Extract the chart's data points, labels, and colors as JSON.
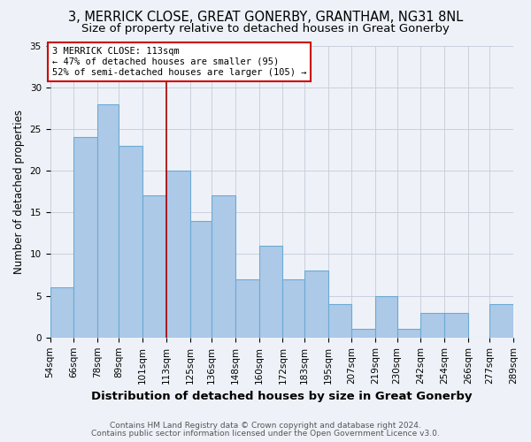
{
  "title": "3, MERRICK CLOSE, GREAT GONERBY, GRANTHAM, NG31 8NL",
  "subtitle": "Size of property relative to detached houses in Great Gonerby",
  "xlabel": "Distribution of detached houses by size in Great Gonerby",
  "ylabel": "Number of detached properties",
  "bins": [
    54,
    66,
    78,
    89,
    101,
    113,
    125,
    136,
    148,
    160,
    172,
    183,
    195,
    207,
    219,
    230,
    242,
    254,
    266,
    277,
    289
  ],
  "values": [
    6,
    24,
    28,
    23,
    17,
    20,
    14,
    17,
    7,
    11,
    7,
    8,
    4,
    1,
    5,
    1,
    3,
    3,
    0,
    4
  ],
  "bar_color": "#adc9e8",
  "bar_edge_color": "#6aaad4",
  "vline_x": 113,
  "vline_color": "#aa0000",
  "annotation_text": "3 MERRICK CLOSE: 113sqm\n← 47% of detached houses are smaller (95)\n52% of semi-detached houses are larger (105) →",
  "annotation_box_color": "#ffffff",
  "annotation_box_edge": "#cc0000",
  "ylim": [
    0,
    35
  ],
  "yticks": [
    0,
    5,
    10,
    15,
    20,
    25,
    30,
    35
  ],
  "footer1": "Contains HM Land Registry data © Crown copyright and database right 2024.",
  "footer2": "Contains public sector information licensed under the Open Government Licence v3.0.",
  "bg_color": "#eef2f8",
  "title_fontsize": 10.5,
  "subtitle_fontsize": 9.5,
  "xlabel_fontsize": 9.5,
  "ylabel_fontsize": 8.5,
  "tick_fontsize": 7.5,
  "annot_fontsize": 7.5,
  "footer_fontsize": 6.5
}
